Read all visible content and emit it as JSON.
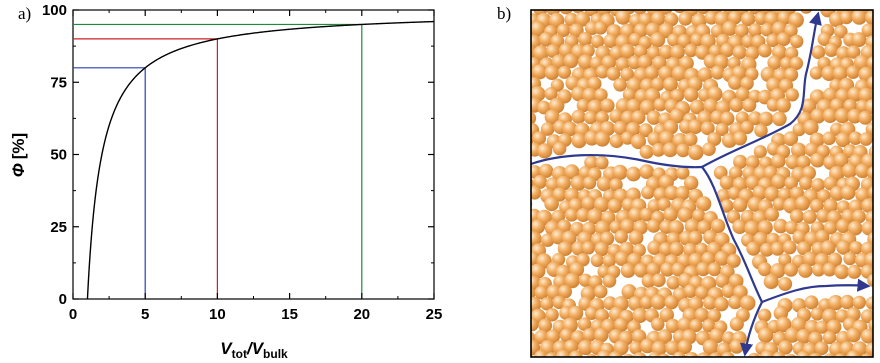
{
  "figure": {
    "panel_a_label": "a)",
    "panel_b_label": "b)"
  },
  "chart_data": {
    "type": "line",
    "title": "",
    "xlabel": {
      "main": "V",
      "sub1": "tot",
      "sep": "/V",
      "sub2": "bulk"
    },
    "ylabel": {
      "symbol": "Φ",
      "unit": "[%]"
    },
    "xlim": [
      0,
      25
    ],
    "ylim": [
      0,
      100
    ],
    "xticks": [
      "0",
      "5",
      "10",
      "15",
      "20",
      "25"
    ],
    "yticks": [
      "0",
      "25",
      "50",
      "75",
      "100"
    ],
    "grid": false,
    "legend": "none",
    "series": [
      {
        "formula": "phi = 100 * (1 - 1/x)",
        "x": [
          1,
          1.2,
          1.5,
          2,
          2.5,
          3,
          4,
          5,
          6,
          8,
          10,
          12,
          15,
          20,
          25
        ],
        "values": [
          0,
          16.7,
          33.3,
          50,
          60,
          66.7,
          75,
          80,
          83.3,
          87.5,
          90,
          91.7,
          93.3,
          95,
          96
        ],
        "color": "#000000"
      }
    ],
    "guides": [
      {
        "x": 5,
        "y": 80,
        "color": "#2b3fb0"
      },
      {
        "x": 10,
        "y": 90,
        "color": "#cc2222"
      },
      {
        "x": 20,
        "y": 95,
        "color": "#1e8a3c"
      }
    ]
  },
  "illustration": {
    "particle_color": "#f0a855",
    "particle_highlight": "#fde7c8",
    "particle_shadow": "#c97a2b",
    "channel_color": "#2f3a8f",
    "description_none": ""
  }
}
